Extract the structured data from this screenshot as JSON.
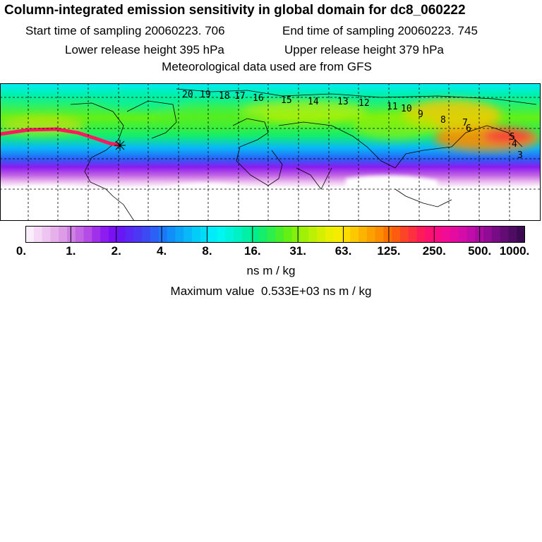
{
  "header": {
    "title": "Column-integrated emission sensitivity in global domain for dc8_060222",
    "start_time": "Start time of sampling 20060223.   706",
    "end_time": "End time of sampling 20060223.   745",
    "lower_height": "Lower release height  395 hPa",
    "upper_height": "Upper release height  379 hPa",
    "met_data": "Meteorological data used are from GFS"
  },
  "map": {
    "track_labels": [
      "20",
      "19",
      "18",
      "17",
      "16",
      "15",
      "14",
      "13",
      "12",
      "11",
      "10",
      "9",
      "8",
      "7",
      "6",
      "5",
      "4",
      "3"
    ],
    "colors": {
      "background": "#ffffff",
      "track": "#ff1a60",
      "grid": "#000000"
    }
  },
  "colorbar": {
    "tick_labels": [
      "0.",
      "1.",
      "2.",
      "4.",
      "8.",
      "16.",
      "31.",
      "63.",
      "125.",
      "250.",
      "500.",
      "1000."
    ],
    "colors": [
      "#fbeefb",
      "#f4d8f5",
      "#eec4f0",
      "#e6b0eb",
      "#dc9ce6",
      "#cf80e3",
      "#c366e4",
      "#b64ce6",
      "#a030ea",
      "#8c1cf0",
      "#7a10f4",
      "#6818f4",
      "#5a28f4",
      "#4a38f4",
      "#3c4af4",
      "#2c60f6",
      "#1c78f8",
      "#128ef8",
      "#0ca4f8",
      "#08b8f8",
      "#04ccf8",
      "#00dcf8",
      "#00ecf8",
      "#00f6f0",
      "#00f4dc",
      "#00f2c4",
      "#00f0a8",
      "#00ee8c",
      "#14ee6c",
      "#2cee4c",
      "#48ee2c",
      "#64f014",
      "#84f00c",
      "#a0f008",
      "#bcf004",
      "#d4f000",
      "#e8f000",
      "#f6ec00",
      "#fcdc00",
      "#fcc800",
      "#fcb400",
      "#fca000",
      "#fc8c00",
      "#fc7400",
      "#fc5c10",
      "#fc4428",
      "#fc3040",
      "#fc1c58",
      "#fc1070",
      "#f80c84",
      "#f00c94",
      "#e40ca0",
      "#d40ca8",
      "#c00ca8",
      "#a80ca0",
      "#900c94",
      "#780c84",
      "#620c74",
      "#4e0c62",
      "#3c0a50"
    ],
    "unit": "ns m / kg"
  },
  "footer": {
    "max_prefix": "Maximum value ",
    "max_value": " 0.533E+03",
    "max_unit": " ns m / kg"
  }
}
